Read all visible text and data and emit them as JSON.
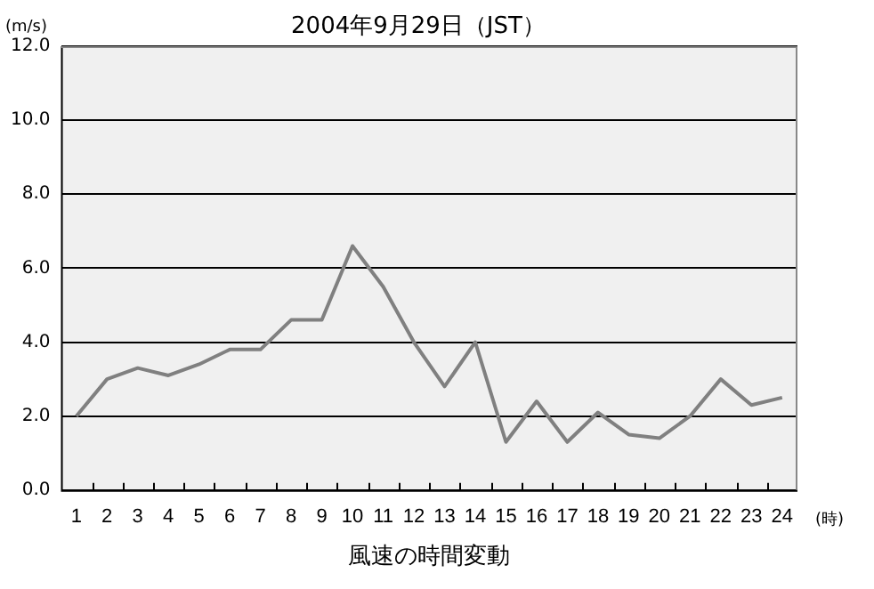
{
  "chart_data": {
    "type": "line",
    "title": "2004年9月29日（JST）",
    "ylabel": "(m/s)",
    "xlabel": "風速の時間変動",
    "annotations": [
      "(時)"
    ],
    "categories": [
      "1",
      "2",
      "3",
      "4",
      "5",
      "6",
      "7",
      "8",
      "9",
      "10",
      "11",
      "12",
      "13",
      "14",
      "15",
      "16",
      "17",
      "18",
      "19",
      "20",
      "21",
      "22",
      "23",
      "24"
    ],
    "series": [
      {
        "color": "#808080",
        "values": [
          2.0,
          3.0,
          3.3,
          3.1,
          3.4,
          3.8,
          3.8,
          4.6,
          4.6,
          6.6,
          5.5,
          4.0,
          2.8,
          4.0,
          1.3,
          2.4,
          1.3,
          2.1,
          1.5,
          1.4,
          2.0,
          3.0,
          2.3,
          2.5
        ]
      }
    ],
    "ylim": [
      0,
      12
    ],
    "yticks": [
      {
        "value": 0,
        "label": "0.0"
      },
      {
        "value": 2,
        "label": "2.0"
      },
      {
        "value": 4,
        "label": "4.0"
      },
      {
        "value": 6,
        "label": "6.0"
      },
      {
        "value": 8,
        "label": "8.0"
      },
      {
        "value": 10,
        "label": "10.0"
      },
      {
        "value": 12,
        "label": "12.0"
      }
    ],
    "grid": "y",
    "legend": false,
    "marker": "none",
    "line_style": "solid"
  }
}
